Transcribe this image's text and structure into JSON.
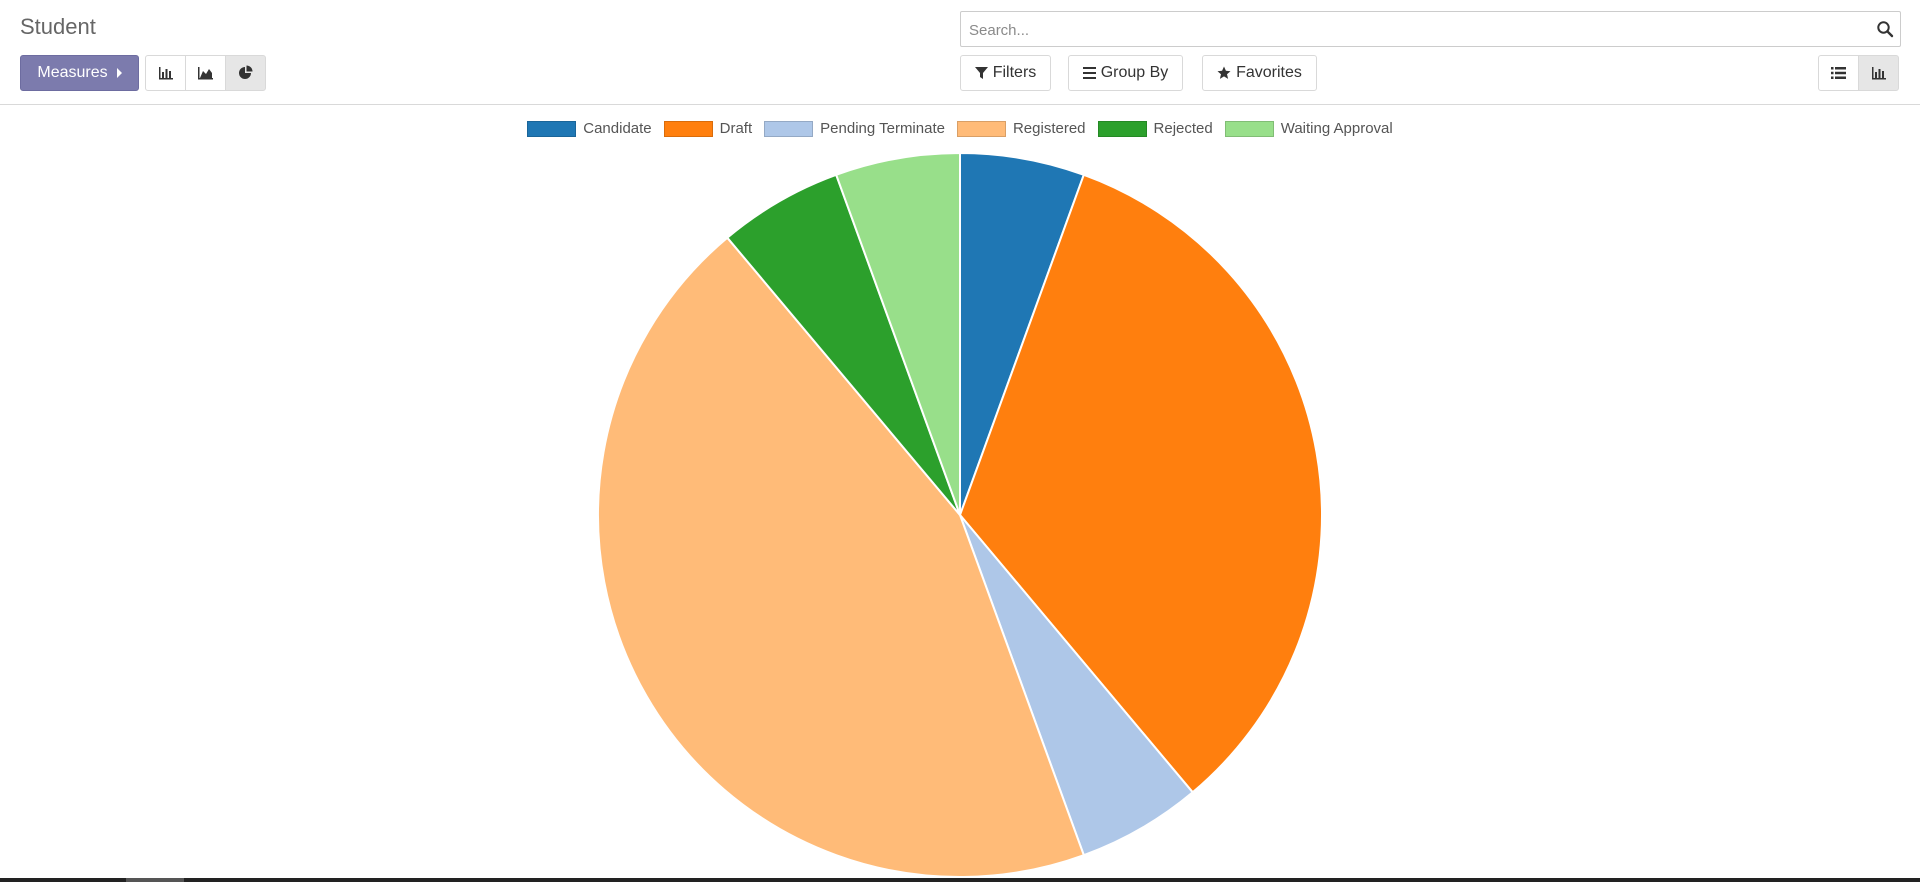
{
  "header": {
    "title": "Student"
  },
  "toolbar": {
    "measures_label": "Measures",
    "chart_types": [
      {
        "name": "bar",
        "icon": "bar-chart-icon",
        "active": false
      },
      {
        "name": "line",
        "icon": "area-chart-icon",
        "active": false
      },
      {
        "name": "pie",
        "icon": "pie-chart-icon",
        "active": true
      }
    ]
  },
  "search": {
    "placeholder": "Search...",
    "value": ""
  },
  "filters": {
    "filters_label": "Filters",
    "group_by_label": "Group By",
    "favorites_label": "Favorites"
  },
  "views": [
    {
      "name": "list",
      "icon": "list-icon",
      "active": false
    },
    {
      "name": "graph",
      "icon": "graph-icon",
      "active": true
    }
  ],
  "chart_data": {
    "type": "pie",
    "title": "",
    "legend_position": "top-center",
    "slices": [
      {
        "label": "Candidate",
        "value": 1,
        "color": "#1f77b4"
      },
      {
        "label": "Draft",
        "value": 6,
        "color": "#ff7f0e"
      },
      {
        "label": "Pending Terminate",
        "value": 1,
        "color": "#aec7e8"
      },
      {
        "label": "Registered",
        "value": 8,
        "color": "#ffbb78"
      },
      {
        "label": "Rejected",
        "value": 1,
        "color": "#2ca02c"
      },
      {
        "label": "Waiting Approval",
        "value": 1,
        "color": "#98df8a"
      }
    ]
  }
}
